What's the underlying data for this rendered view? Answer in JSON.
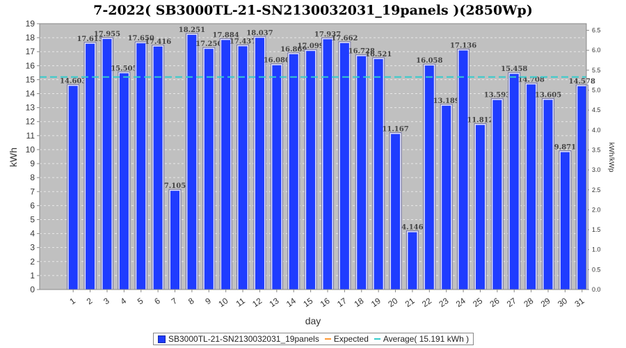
{
  "chart_data": {
    "type": "bar",
    "title": "7-2022( SB3000TL-21-SN2130032031_19panels )(2850Wp)",
    "xlabel": "day",
    "ylabel": "kWh",
    "y2label": "kWh/kWp",
    "categories": [
      "1",
      "2",
      "3",
      "4",
      "5",
      "6",
      "7",
      "8",
      "9",
      "10",
      "11",
      "12",
      "13",
      "14",
      "15",
      "16",
      "17",
      "18",
      "19",
      "20",
      "21",
      "22",
      "23",
      "24",
      "25",
      "26",
      "27",
      "28",
      "29",
      "30",
      "31"
    ],
    "series": [
      {
        "name": "SB3000TL-21-SN2130032031_19panels",
        "color": "#1f3cff",
        "values": [
          14.603,
          17.615,
          17.955,
          15.505,
          17.65,
          17.416,
          7.105,
          18.251,
          17.25,
          17.884,
          17.437,
          18.037,
          16.08,
          16.869,
          17.099,
          17.937,
          17.662,
          16.728,
          16.521,
          11.167,
          4.146,
          16.058,
          13.189,
          17.136,
          11.812,
          13.593,
          15.458,
          14.708,
          13.605,
          9.871,
          14.578
        ],
        "labels": [
          "14.603",
          "17.615",
          "17.955",
          "15.505",
          "17.650",
          "17.416",
          "7.105",
          "18.251",
          "17.250",
          "17.884",
          "17.437",
          "18.037",
          "16.080",
          "16.869",
          "17.099",
          "17.937",
          "17.662",
          "16.728",
          "16.521",
          "11.167",
          "4.146",
          "16.058",
          "13.189",
          "17.136",
          "11.812",
          "13.593",
          "15.458",
          "14.708",
          "13.605",
          "9.871",
          "14.578"
        ]
      }
    ],
    "average": {
      "value": 15.191,
      "color": "#33cccc"
    },
    "expected": {
      "color": "#ff9933"
    },
    "ylim": [
      0,
      19
    ],
    "yticks": [
      "0",
      "1",
      "2",
      "3",
      "4",
      "5",
      "6",
      "7",
      "8",
      "9",
      "10",
      "11",
      "12",
      "13",
      "14",
      "15",
      "16",
      "17",
      "18",
      "19"
    ],
    "y2lim": [
      0,
      6.667
    ],
    "y2ticks": [
      "0.0",
      "0.5",
      "1.0",
      "1.5",
      "2.0",
      "2.5",
      "3.0",
      "3.5",
      "4.0",
      "4.5",
      "5.0",
      "5.5",
      "6.0",
      "6.5"
    ],
    "grid": true,
    "legend_position": "bottom"
  },
  "legend": {
    "series_label": "SB3000TL-21-SN2130032031_19panels",
    "expected_label": "Expected",
    "average_label": "Average( 15.191 kWh )"
  }
}
